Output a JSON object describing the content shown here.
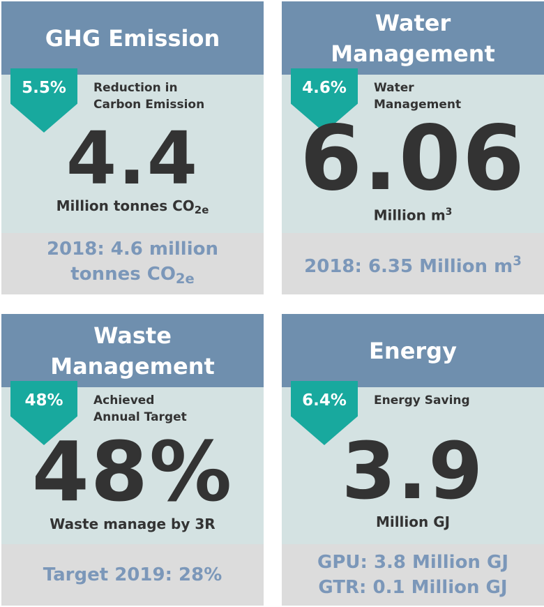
{
  "cards": [
    {
      "title": [
        "GHG Emission"
      ],
      "badge": "5.5%",
      "label": [
        "Reduction in",
        "Carbon Emission"
      ],
      "value": "4.4",
      "unit": {
        "text": "Million tonnes CO",
        "sub": "2e"
      },
      "footer": {
        "lines": [
          "2018: 4.6 million",
          "tonnes CO"
        ],
        "sub": "2e"
      }
    },
    {
      "title": [
        "Water",
        "Management"
      ],
      "badge": "4.6%",
      "label": [
        "Water",
        "Management"
      ],
      "value": "6.06",
      "unit": {
        "text": "Million m",
        "sup": "3"
      },
      "footer": {
        "lines": [
          "2018: 6.35 Million m"
        ],
        "sup": "3"
      }
    },
    {
      "title": [
        "Waste",
        "Management"
      ],
      "badge": "48%",
      "label": [
        "Achieved",
        "Annual Target"
      ],
      "value": "48%",
      "unit": {
        "text": "Waste manage by 3R"
      },
      "footer": {
        "lines": [
          "Target 2019: 28%"
        ]
      }
    },
    {
      "title": [
        "Energy"
      ],
      "badge": "6.4%",
      "label": [
        "Energy Saving"
      ],
      "value": "3.9",
      "unit": {
        "text": "Million GJ"
      },
      "footer": {
        "lines": [
          "GPU: 3.8 Million GJ",
          "GTR: 0.1 Million GJ"
        ]
      }
    }
  ]
}
